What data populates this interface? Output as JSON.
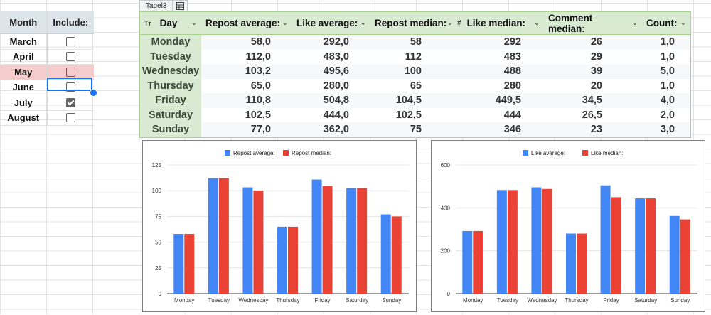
{
  "filter_panel": {
    "headers": {
      "month": "Month",
      "include": "Include:"
    },
    "rows": [
      {
        "month": "March",
        "checked": false,
        "highlighted": false
      },
      {
        "month": "April",
        "checked": false,
        "highlighted": false
      },
      {
        "month": "May",
        "checked": false,
        "highlighted": true
      },
      {
        "month": "June",
        "checked": false,
        "highlighted": false
      },
      {
        "month": "July",
        "checked": true,
        "highlighted": false
      },
      {
        "month": "August",
        "checked": false,
        "highlighted": false
      }
    ]
  },
  "table": {
    "tab_label": "Tabel3",
    "type_icon": "Tт",
    "hash_icon": "#",
    "columns": [
      "Day",
      "Repost average:",
      "Like average:",
      "Repost median:",
      "Like median:",
      "Comment median:",
      "Count:"
    ],
    "rows": [
      [
        "Monday",
        "58,0",
        "292,0",
        "58",
        "292",
        "26",
        "1,0"
      ],
      [
        "Tuesday",
        "112,0",
        "483,0",
        "112",
        "483",
        "29",
        "1,0"
      ],
      [
        "Wednesday",
        "103,2",
        "495,6",
        "100",
        "488",
        "39",
        "5,0"
      ],
      [
        "Thursday",
        "65,0",
        "280,0",
        "65",
        "280",
        "20",
        "1,0"
      ],
      [
        "Friday",
        "110,8",
        "504,8",
        "104,5",
        "449,5",
        "34,5",
        "4,0"
      ],
      [
        "Saturday",
        "102,5",
        "444,0",
        "102,5",
        "444",
        "26,5",
        "2,0"
      ],
      [
        "Sunday",
        "77,0",
        "362,0",
        "75",
        "346",
        "23",
        "3,0"
      ]
    ]
  },
  "colors": {
    "series_a": "#4285f4",
    "series_b": "#ea4335",
    "header_green": "#d9ead3",
    "selection": "#1a73e8"
  },
  "chart_data": [
    {
      "type": "bar",
      "categories": [
        "Monday",
        "Tuesday",
        "Wednesday",
        "Thursday",
        "Friday",
        "Saturday",
        "Sunday"
      ],
      "series": [
        {
          "name": "Repost average:",
          "values": [
            58,
            112,
            103.2,
            65,
            110.8,
            102.5,
            77
          ]
        },
        {
          "name": "Repost median:",
          "values": [
            58,
            112,
            100,
            65,
            104.5,
            102.5,
            75
          ]
        }
      ],
      "yticks": [
        "0",
        "25",
        "50",
        "75",
        "100",
        "125"
      ],
      "ylim": [
        0,
        125
      ],
      "legend": "top"
    },
    {
      "type": "bar",
      "categories": [
        "Monday",
        "Tuesday",
        "Wednesday",
        "Thursday",
        "Friday",
        "Saturday",
        "Sunday"
      ],
      "series": [
        {
          "name": "Like average:",
          "values": [
            292,
            483,
            495.6,
            280,
            504.8,
            444,
            362
          ]
        },
        {
          "name": "Like median:",
          "values": [
            292,
            483,
            488,
            280,
            449.5,
            444,
            346
          ]
        }
      ],
      "yticks": [
        "0",
        "200",
        "400",
        "600"
      ],
      "ylim": [
        0,
        600
      ],
      "legend": "top"
    }
  ]
}
